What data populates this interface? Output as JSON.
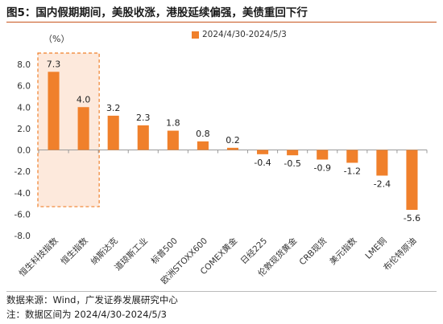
{
  "figure": {
    "title": "图5：国内假期期间，美股收涨，港股延续偏强，美债重回下行",
    "unit": "（%）",
    "source": "数据来源：Wind，广发证券发展研究中心",
    "note": "注：数据区间为 2024/4/30-2024/5/3"
  },
  "colors": {
    "bar": "#f0802b",
    "highlight_border": "#f0802b",
    "highlight_fill": "#fde9dc",
    "axis": "#9a9a9a",
    "title_rule": "#c8551e"
  },
  "chart_data": {
    "type": "bar",
    "categories": [
      "恒生科技指数",
      "恒生指数",
      "纳斯达克",
      "道琼斯工业",
      "标普500",
      "欧洲STOXX600",
      "COMEX黄金",
      "日经225",
      "伦敦现货黄金",
      "CRB现货",
      "美元指数",
      "LME铜",
      "布伦特原油"
    ],
    "series": [
      {
        "name": "2024/4/30-2024/5/3",
        "values": [
          7.3,
          4.0,
          3.2,
          2.3,
          1.8,
          0.8,
          0.2,
          -0.4,
          -0.5,
          -0.9,
          -1.2,
          -2.4,
          -5.6
        ]
      }
    ],
    "data_labels": [
      "7.3",
      "4.0",
      "3.2",
      "2.3",
      "1.8",
      "0.8",
      "0.2",
      "-0.4",
      "-0.5",
      "-0.9",
      "-1.2",
      "-2.4",
      "-5.6"
    ],
    "y_ticks": [
      "8.0",
      "6.0",
      "4.0",
      "2.0",
      "0.0",
      "-2.0",
      "-4.0",
      "-6.0",
      "-8.0"
    ],
    "ylim": [
      -8,
      8
    ],
    "grid": false,
    "legend": "top",
    "highlighted_categories": [
      0,
      1
    ]
  }
}
